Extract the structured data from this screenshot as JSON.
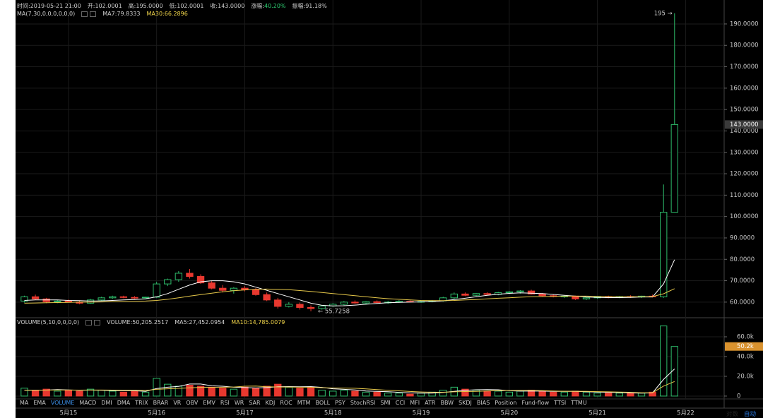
{
  "header": {
    "time": "时间:2019-05-21 21:00",
    "open": "开:102.0001",
    "high": "高:195.0000",
    "low": "低:102.0001",
    "close": "收:143.0000",
    "change_label": "涨幅:",
    "change": "40.20%",
    "amplitude": "振幅:91.18%"
  },
  "chart_data": [
    {
      "type": "candlestick",
      "legend_title": "MA(7,30,0,0,0,0,0,0)",
      "up_color": "#2ebd6b",
      "down_color": "#e8382f",
      "open": [
        60.5,
        62.5,
        61.5,
        60.2,
        60.5,
        60.0,
        59.5,
        61.0,
        62.0,
        62.5,
        62.2,
        62.0,
        62.3,
        68.5,
        70.5,
        73.5,
        72.0,
        69.0,
        66.5,
        65.5,
        66.5,
        65.8,
        63.5,
        61.0,
        58.0,
        59.0,
        57.5,
        57.0,
        58.2,
        59.0,
        60.0,
        59.6,
        60.2,
        59.8,
        60.0,
        60.4,
        60.1,
        60.3,
        60.6,
        62.0,
        63.8,
        63.2,
        64.0,
        63.6,
        64.4,
        64.8,
        65.2,
        63.8,
        63.0,
        62.6,
        62.8,
        61.5,
        62.0,
        62.4,
        62.2,
        62.6,
        62.4,
        62.8,
        62.5,
        102.0001
      ],
      "high": [
        63.0,
        63.5,
        62.0,
        61.0,
        61.2,
        60.8,
        61.5,
        62.5,
        63.0,
        63.0,
        62.8,
        62.5,
        69.5,
        71.0,
        74.5,
        75.5,
        73.0,
        70.0,
        68.0,
        67.0,
        67.5,
        66.5,
        64.5,
        62.0,
        60.0,
        59.8,
        58.5,
        58.5,
        59.5,
        60.5,
        60.8,
        60.5,
        60.8,
        60.6,
        60.9,
        60.8,
        60.7,
        61.0,
        62.5,
        64.5,
        64.5,
        64.2,
        64.6,
        64.8,
        65.2,
        65.6,
        65.8,
        64.2,
        63.6,
        63.2,
        63.0,
        62.4,
        62.8,
        63.0,
        62.9,
        63.2,
        63.0,
        63.5,
        115.0,
        195.0
      ],
      "low": [
        59.8,
        61.0,
        59.5,
        59.5,
        59.8,
        59.0,
        59.2,
        60.5,
        61.5,
        61.8,
        61.5,
        61.8,
        62.0,
        67.5,
        69.5,
        71.0,
        68.5,
        66.0,
        64.5,
        64.0,
        65.0,
        63.0,
        60.5,
        57.0,
        57.5,
        56.5,
        55.7258,
        56.5,
        57.8,
        58.5,
        59.2,
        59.0,
        59.5,
        59.2,
        59.6,
        59.8,
        59.7,
        59.9,
        60.2,
        61.5,
        62.8,
        62.8,
        63.2,
        63.2,
        63.8,
        64.0,
        63.5,
        62.6,
        62.2,
        62.0,
        61.0,
        61.0,
        61.6,
        61.8,
        61.8,
        62.0,
        61.9,
        62.2,
        62.0,
        102.0001
      ],
      "close": [
        62.5,
        61.5,
        60.2,
        60.5,
        60.0,
        59.5,
        61.0,
        62.0,
        62.5,
        62.2,
        62.0,
        62.3,
        68.5,
        70.5,
        73.5,
        72.0,
        69.0,
        66.5,
        65.5,
        66.5,
        65.8,
        63.5,
        61.0,
        58.0,
        59.0,
        57.5,
        57.0,
        58.2,
        59.0,
        60.0,
        59.6,
        60.2,
        59.8,
        60.0,
        60.4,
        60.1,
        60.3,
        60.6,
        62.0,
        63.8,
        63.2,
        64.0,
        63.6,
        64.4,
        64.8,
        65.2,
        63.8,
        63.0,
        62.6,
        62.8,
        61.5,
        62.0,
        62.4,
        62.2,
        62.6,
        62.4,
        62.8,
        62.5,
        102.0,
        143.0
      ],
      "series": [
        {
          "name": "MA7:79.8333",
          "color": "#ffffff",
          "values": [
            60.8,
            61,
            61,
            61,
            60.8,
            60.7,
            60.5,
            60.6,
            60.8,
            61,
            61.2,
            61.5,
            62.5,
            64,
            66,
            68,
            69.5,
            70,
            70,
            69.5,
            68.5,
            67,
            65.5,
            64,
            62.5,
            61,
            59.5,
            58.5,
            58.2,
            58.3,
            58.6,
            59,
            59.4,
            59.7,
            59.9,
            60,
            60.1,
            60.2,
            60.6,
            61.2,
            61.8,
            62.5,
            63.2,
            63.7,
            64.1,
            64.3,
            64.2,
            64.0,
            63.6,
            63.2,
            62.8,
            62.4,
            62.2,
            62.1,
            62.1,
            62.2,
            62.4,
            62.4,
            68.5,
            79.8333
          ]
        },
        {
          "name": "MA30:66.2896",
          "color": "#e6c84a",
          "values": [
            59.5,
            59.6,
            59.7,
            59.8,
            59.9,
            60,
            60,
            60.1,
            60.2,
            60.3,
            60.4,
            60.5,
            60.8,
            61.3,
            62,
            62.8,
            63.5,
            64.2,
            64.8,
            65.3,
            65.7,
            66,
            66.1,
            66,
            65.8,
            65.4,
            65,
            64.5,
            64,
            63.5,
            63,
            62.5,
            62,
            61.6,
            61.3,
            61,
            60.8,
            60.7,
            60.7,
            60.8,
            61,
            61.2,
            61.5,
            61.8,
            62,
            62.3,
            62.5,
            62.6,
            62.7,
            62.8,
            62.8,
            62.8,
            62.7,
            62.6,
            62.5,
            62.5,
            62.5,
            62.6,
            63.9,
            66.2896
          ]
        }
      ],
      "ylim": [
        52.7,
        201.2
      ],
      "yticks": [
        {
          "value": 60,
          "label": "60.0000"
        },
        {
          "value": 70,
          "label": "70.0000"
        },
        {
          "value": 80,
          "label": "80.0000"
        },
        {
          "value": 90,
          "label": "90.0000"
        },
        {
          "value": 100,
          "label": "100.0000"
        },
        {
          "value": 110,
          "label": "110.0000"
        },
        {
          "value": 120,
          "label": "120.0000"
        },
        {
          "value": 130,
          "label": "130.0000"
        },
        {
          "value": 140,
          "label": "140.0000"
        },
        {
          "value": 150,
          "label": "150.0000"
        },
        {
          "value": 160,
          "label": "160.0000"
        },
        {
          "value": 170,
          "label": "170.0000"
        },
        {
          "value": 180,
          "label": "180.0000"
        },
        {
          "value": 190,
          "label": "190.0000"
        }
      ],
      "xlim": [
        -0.8,
        63.5
      ],
      "xticks": [
        {
          "value": 4,
          "label": "5月15"
        },
        {
          "value": 12,
          "label": "5月16"
        },
        {
          "value": 20,
          "label": "5月17"
        },
        {
          "value": 28,
          "label": "5月18"
        },
        {
          "value": 36,
          "label": "5月19"
        },
        {
          "value": 44,
          "label": "5月20"
        },
        {
          "value": 52,
          "label": "5月21"
        },
        {
          "value": 60,
          "label": "5月22"
        }
      ],
      "grid": true,
      "annotations": {
        "high": "195 →",
        "low": "← 55.7258",
        "last": "143.0000"
      }
    },
    {
      "type": "bar",
      "legend_title": "VOLUME(5,10,0,0,0,0)",
      "series": [
        {
          "name": "VOLUME:50,205.2517",
          "values": [
            8,
            6,
            7,
            5,
            6,
            5,
            7,
            6,
            5,
            4,
            5,
            4,
            18,
            12,
            10,
            11,
            10,
            9,
            8,
            7,
            9,
            8,
            10,
            12,
            9,
            8,
            9,
            6,
            5,
            6,
            5,
            4,
            4,
            3,
            3,
            2,
            3,
            4,
            6,
            9,
            7,
            6,
            5,
            5,
            4,
            5,
            6,
            5,
            4,
            4,
            5,
            4,
            3,
            3,
            3,
            3,
            3,
            4,
            71,
            50.2052517
          ]
        },
        {
          "name": "MA5:27,452.0954",
          "color": "#ffffff",
          "values": [
            6,
            6,
            6,
            6.5,
            6.2,
            5.8,
            6,
            5.8,
            5.6,
            5.4,
            5.4,
            4.8,
            7.6,
            9,
            9.8,
            12.2,
            12.2,
            10.4,
            10,
            9,
            8.6,
            8.2,
            8.6,
            9.4,
            9.6,
            9.4,
            9.6,
            8.8,
            7.4,
            6.8,
            6.2,
            5.2,
            4.8,
            4.4,
            3.8,
            3.2,
            3,
            3,
            3.6,
            4.8,
            5.8,
            6.4,
            6.6,
            6.4,
            5.4,
            5,
            5,
            5,
            4.8,
            4.8,
            4.8,
            4.4,
            4,
            3.8,
            3.6,
            3.2,
            3,
            3.2,
            16.8,
            27.4520954
          ]
        },
        {
          "name": "MA10:14,785.0079",
          "color": "#e6c84a",
          "values": [
            5.8,
            5.9,
            6,
            6.1,
            6.1,
            6,
            6.1,
            6.1,
            6,
            5.9,
            5.8,
            5.6,
            6.8,
            7.4,
            7.8,
            8.4,
            8.8,
            8.9,
            9,
            9.2,
            10,
            10.2,
            9.5,
            9.2,
            9.2,
            9,
            9,
            8.5,
            8.2,
            8.1,
            7.9,
            7.3,
            6.6,
            5.9,
            5.3,
            4.7,
            4.2,
            3.9,
            3.9,
            4.3,
            4.6,
            4.8,
            5.1,
            5.5,
            5.6,
            5.7,
            5.7,
            5.5,
            5.1,
            4.9,
            4.9,
            4.8,
            4.5,
            4.3,
            4.1,
            3.8,
            3.4,
            3.4,
            10.1,
            14.7850079
          ]
        }
      ],
      "ylim": [
        -2.9,
        79.3
      ],
      "yticks": [
        0,
        {
          "value": 20,
          "label": "20.0k"
        },
        {
          "value": 40,
          "label": "40.0k"
        },
        {
          "value": 60,
          "label": "60.0k"
        }
      ],
      "annotations": {
        "last": "50.2k"
      }
    }
  ],
  "indicators": [
    "MA",
    "EMA",
    "VOLUME",
    "MACD",
    "DMI",
    "DMA",
    "TRIX",
    "BRAR",
    "VR",
    "OBV",
    "EMV",
    "RSI",
    "WR",
    "SAR",
    "KDJ",
    "ROC",
    "MTM",
    "BOLL",
    "PSY",
    "StochRSI",
    "SMI",
    "CCI",
    "MFI",
    "ATR",
    "BBW",
    "SKDJ",
    "BIAS",
    "Position",
    "Fund-flow",
    "TTSI",
    "TTMU"
  ],
  "footer": {
    "log": "对数",
    "auto": "自动"
  }
}
